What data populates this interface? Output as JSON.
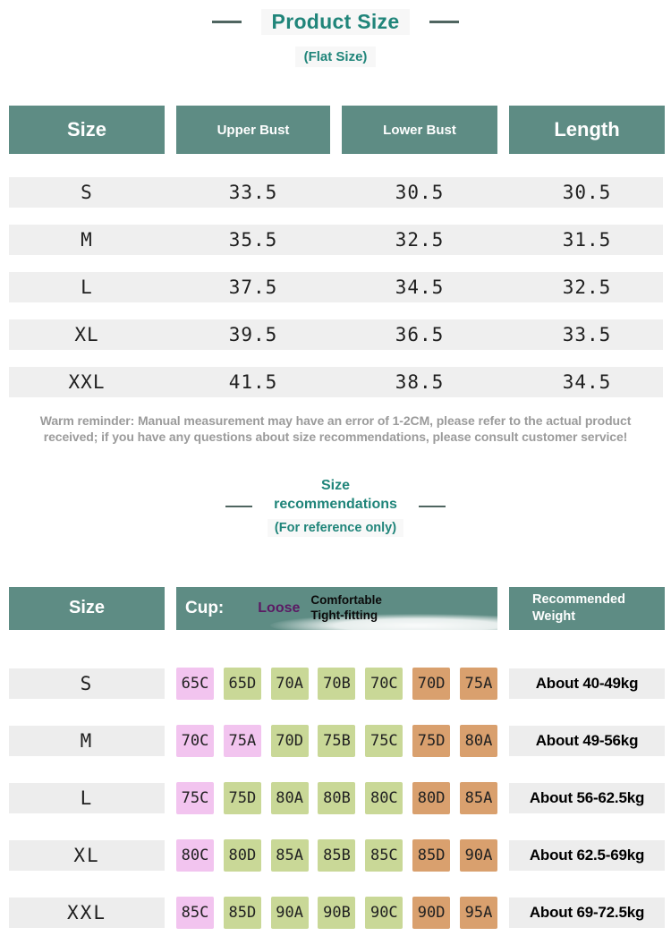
{
  "colors": {
    "teal-header": "#5E8C84",
    "accent-teal": "#20857A",
    "dash-gray": "#4F6560",
    "row-gray": "#EFEFEF",
    "strip-gray": "#EDEDED",
    "loose-pink": "#F2C4EF",
    "comfortable-green": "#C9D897",
    "tight-tan": "#D9A06E",
    "legend-purple": "#5B1A64",
    "note-gray": "#9B9B9B",
    "cell-text": "#1F1F1F"
  },
  "header": {
    "title": "Product Size",
    "subtitle": "(Flat Size)"
  },
  "flat_size_table": {
    "columns": [
      "Size",
      "Upper Bust",
      "Lower Bust",
      "Length"
    ],
    "rows": [
      {
        "size": "S",
        "upper_bust": "33.5",
        "lower_bust": "30.5",
        "length": "30.5"
      },
      {
        "size": "M",
        "upper_bust": "35.5",
        "lower_bust": "32.5",
        "length": "31.5"
      },
      {
        "size": "L",
        "upper_bust": "37.5",
        "lower_bust": "34.5",
        "length": "32.5"
      },
      {
        "size": "XL",
        "upper_bust": "39.5",
        "lower_bust": "36.5",
        "length": "33.5"
      },
      {
        "size": "XXL",
        "upper_bust": "41.5",
        "lower_bust": "38.5",
        "length": "34.5"
      }
    ]
  },
  "note": "Warm reminder: Manual measurement may have an error of 1-2CM, please refer to the actual product received; if you have any questions about size recommendations, please consult customer service!",
  "recommendations": {
    "title_line1": "Size",
    "title_line2": "recommendations",
    "subtitle": "(For reference only)",
    "table": {
      "size_header": "Size",
      "cup_header": "Cup:",
      "legend": {
        "loose": "Loose",
        "comfortable": "Comfortable",
        "tight": "Tight-fitting"
      },
      "weight_header_line1": "Recommended",
      "weight_header_line2": "Weight",
      "rows": [
        {
          "size": "S",
          "weight": "About 40-49kg",
          "cups": [
            {
              "label": "65C",
              "fit": "loose"
            },
            {
              "label": "65D",
              "fit": "comfortable"
            },
            {
              "label": "70A",
              "fit": "comfortable"
            },
            {
              "label": "70B",
              "fit": "comfortable"
            },
            {
              "label": "70C",
              "fit": "comfortable"
            },
            {
              "label": "70D",
              "fit": "tight"
            },
            {
              "label": "75A",
              "fit": "tight"
            }
          ]
        },
        {
          "size": "M",
          "weight": "About 49-56kg",
          "cups": [
            {
              "label": "70C",
              "fit": "loose"
            },
            {
              "label": "75A",
              "fit": "loose"
            },
            {
              "label": "70D",
              "fit": "comfortable"
            },
            {
              "label": "75B",
              "fit": "comfortable"
            },
            {
              "label": "75C",
              "fit": "comfortable"
            },
            {
              "label": "75D",
              "fit": "tight"
            },
            {
              "label": "80A",
              "fit": "tight"
            }
          ]
        },
        {
          "size": "L",
          "weight": "About 56-62.5kg",
          "cups": [
            {
              "label": "75C",
              "fit": "loose"
            },
            {
              "label": "75D",
              "fit": "comfortable"
            },
            {
              "label": "80A",
              "fit": "comfortable"
            },
            {
              "label": "80B",
              "fit": "comfortable"
            },
            {
              "label": "80C",
              "fit": "comfortable"
            },
            {
              "label": "80D",
              "fit": "tight"
            },
            {
              "label": "85A",
              "fit": "tight"
            }
          ]
        },
        {
          "size": "XL",
          "weight": "About 62.5-69kg",
          "cups": [
            {
              "label": "80C",
              "fit": "loose"
            },
            {
              "label": "80D",
              "fit": "comfortable"
            },
            {
              "label": "85A",
              "fit": "comfortable"
            },
            {
              "label": "85B",
              "fit": "comfortable"
            },
            {
              "label": "85C",
              "fit": "comfortable"
            },
            {
              "label": "85D",
              "fit": "tight"
            },
            {
              "label": "90A",
              "fit": "tight"
            }
          ]
        },
        {
          "size": "XXL",
          "weight": "About 69-72.5kg",
          "cups": [
            {
              "label": "85C",
              "fit": "loose"
            },
            {
              "label": "85D",
              "fit": "comfortable"
            },
            {
              "label": "90A",
              "fit": "comfortable"
            },
            {
              "label": "90B",
              "fit": "comfortable"
            },
            {
              "label": "90C",
              "fit": "comfortable"
            },
            {
              "label": "90D",
              "fit": "tight"
            },
            {
              "label": "95A",
              "fit": "tight"
            }
          ]
        }
      ]
    }
  }
}
